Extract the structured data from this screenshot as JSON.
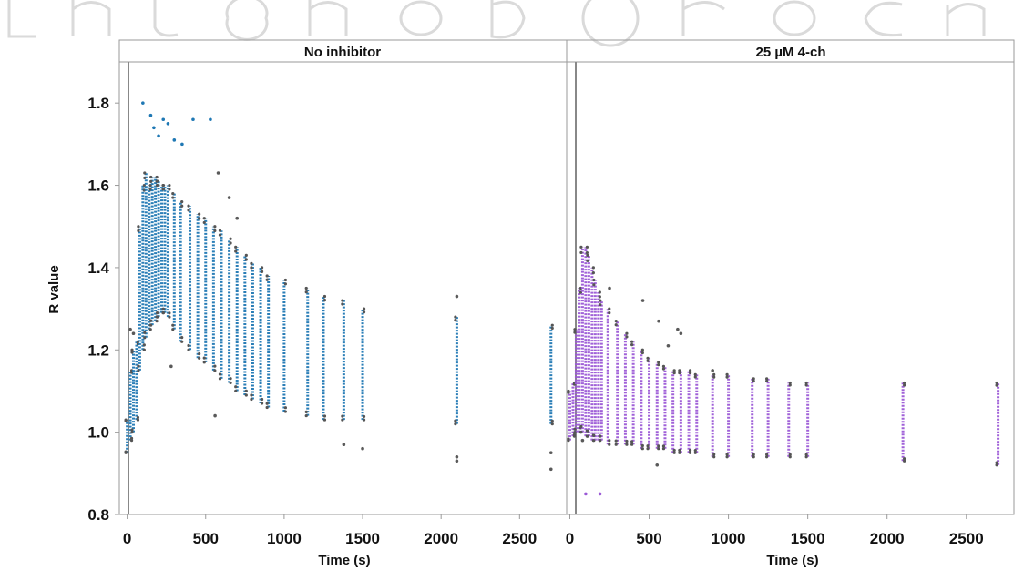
{
  "chart_data": [
    {
      "type": "scatter",
      "title": "No inhibitor",
      "xlabel": "Time (s)",
      "ylabel": "R value",
      "xlim": [
        -50,
        2800
      ],
      "ylim": [
        0.8,
        1.9
      ],
      "xticks": [
        0,
        500,
        1000,
        1500,
        2000,
        2500
      ],
      "yticks": [
        0.8,
        1.0,
        1.2,
        1.4,
        1.6,
        1.8
      ],
      "grid": false,
      "color": "#1f78b4",
      "series": [
        {
          "points": [
            {
              "x": 0,
              "ymin": 0.95,
              "ymax": 1.03
            },
            {
              "x": 20,
              "ymin": 0.98,
              "ymax": 1.15
            },
            {
              "x": 40,
              "ymin": 1.0,
              "ymax": 1.2
            },
            {
              "x": 60,
              "ymin": 1.03,
              "ymax": 1.22
            },
            {
              "x": 80,
              "ymin": 1.15,
              "ymax": 1.5
            },
            {
              "x": 100,
              "ymin": 1.2,
              "ymax": 1.6
            },
            {
              "x": 120,
              "ymin": 1.23,
              "ymax": 1.63
            },
            {
              "x": 140,
              "ymin": 1.25,
              "ymax": 1.6
            },
            {
              "x": 160,
              "ymin": 1.26,
              "ymax": 1.62
            },
            {
              "x": 180,
              "ymin": 1.27,
              "ymax": 1.62
            },
            {
              "x": 200,
              "ymin": 1.28,
              "ymax": 1.61
            },
            {
              "x": 220,
              "ymin": 1.29,
              "ymax": 1.6
            },
            {
              "x": 240,
              "ymin": 1.29,
              "ymax": 1.6
            },
            {
              "x": 260,
              "ymin": 1.28,
              "ymax": 1.6
            },
            {
              "x": 300,
              "ymin": 1.25,
              "ymax": 1.58
            },
            {
              "x": 340,
              "ymin": 1.22,
              "ymax": 1.56
            },
            {
              "x": 400,
              "ymin": 1.2,
              "ymax": 1.55
            },
            {
              "x": 450,
              "ymin": 1.18,
              "ymax": 1.53
            },
            {
              "x": 500,
              "ymin": 1.17,
              "ymax": 1.52
            },
            {
              "x": 550,
              "ymin": 1.15,
              "ymax": 1.5
            },
            {
              "x": 600,
              "ymin": 1.13,
              "ymax": 1.49
            },
            {
              "x": 650,
              "ymin": 1.12,
              "ymax": 1.47
            },
            {
              "x": 700,
              "ymin": 1.1,
              "ymax": 1.45
            },
            {
              "x": 750,
              "ymin": 1.09,
              "ymax": 1.43
            },
            {
              "x": 800,
              "ymin": 1.08,
              "ymax": 1.41
            },
            {
              "x": 850,
              "ymin": 1.07,
              "ymax": 1.4
            },
            {
              "x": 900,
              "ymin": 1.06,
              "ymax": 1.38
            },
            {
              "x": 1000,
              "ymin": 1.05,
              "ymax": 1.37
            },
            {
              "x": 1150,
              "ymin": 1.04,
              "ymax": 1.35
            },
            {
              "x": 1250,
              "ymin": 1.03,
              "ymax": 1.33
            },
            {
              "x": 1380,
              "ymin": 1.03,
              "ymax": 1.32
            },
            {
              "x": 1500,
              "ymin": 1.03,
              "ymax": 1.3
            },
            {
              "x": 2100,
              "ymin": 1.02,
              "ymax": 1.28
            },
            {
              "x": 2700,
              "ymin": 1.02,
              "ymax": 1.26
            }
          ]
        }
      ],
      "outliers": [
        {
          "x": 100,
          "y": 1.8
        },
        {
          "x": 150,
          "y": 1.77
        },
        {
          "x": 170,
          "y": 1.74
        },
        {
          "x": 200,
          "y": 1.72
        },
        {
          "x": 230,
          "y": 1.76
        },
        {
          "x": 260,
          "y": 1.75
        },
        {
          "x": 300,
          "y": 1.71
        },
        {
          "x": 350,
          "y": 1.7
        },
        {
          "x": 420,
          "y": 1.76
        },
        {
          "x": 530,
          "y": 1.76
        },
        {
          "x": 580,
          "y": 1.63
        },
        {
          "x": 650,
          "y": 1.57
        },
        {
          "x": 700,
          "y": 1.52
        },
        {
          "x": 20,
          "y": 1.25
        },
        {
          "x": 40,
          "y": 1.24
        },
        {
          "x": 2100,
          "y": 1.33
        },
        {
          "x": 280,
          "y": 1.16
        },
        {
          "x": 560,
          "y": 1.04
        },
        {
          "x": 1380,
          "y": 0.97
        },
        {
          "x": 2100,
          "y": 0.94
        },
        {
          "x": 2100,
          "y": 0.93
        },
        {
          "x": 2700,
          "y": 0.95
        },
        {
          "x": 2700,
          "y": 0.91
        },
        {
          "x": 1500,
          "y": 0.96
        }
      ]
    },
    {
      "type": "scatter",
      "title": "25 µM 4-ch",
      "xlabel": "Time (s)",
      "ylabel": "",
      "xlim": [
        -20,
        2800
      ],
      "ylim": [
        0.8,
        1.9
      ],
      "xticks": [
        0,
        500,
        1000,
        1500,
        2000,
        2500
      ],
      "yticks": [],
      "grid": false,
      "color": "#9b59d6",
      "series": [
        {
          "points": [
            {
              "x": 0,
              "ymin": 0.98,
              "ymax": 1.1
            },
            {
              "x": 20,
              "ymin": 0.99,
              "ymax": 1.12
            },
            {
              "x": 40,
              "ymin": 1.0,
              "ymax": 1.25
            },
            {
              "x": 60,
              "ymin": 1.0,
              "ymax": 1.35
            },
            {
              "x": 80,
              "ymin": 1.0,
              "ymax": 1.45
            },
            {
              "x": 100,
              "ymin": 0.99,
              "ymax": 1.45
            },
            {
              "x": 120,
              "ymin": 0.99,
              "ymax": 1.43
            },
            {
              "x": 140,
              "ymin": 0.98,
              "ymax": 1.4
            },
            {
              "x": 160,
              "ymin": 0.98,
              "ymax": 1.37
            },
            {
              "x": 180,
              "ymin": 0.98,
              "ymax": 1.34
            },
            {
              "x": 200,
              "ymin": 0.98,
              "ymax": 1.32
            },
            {
              "x": 240,
              "ymin": 0.97,
              "ymax": 1.3
            },
            {
              "x": 300,
              "ymin": 0.97,
              "ymax": 1.27
            },
            {
              "x": 350,
              "ymin": 0.97,
              "ymax": 1.24
            },
            {
              "x": 400,
              "ymin": 0.97,
              "ymax": 1.22
            },
            {
              "x": 450,
              "ymin": 0.96,
              "ymax": 1.2
            },
            {
              "x": 500,
              "ymin": 0.96,
              "ymax": 1.18
            },
            {
              "x": 550,
              "ymin": 0.96,
              "ymax": 1.17
            },
            {
              "x": 600,
              "ymin": 0.96,
              "ymax": 1.16
            },
            {
              "x": 650,
              "ymin": 0.95,
              "ymax": 1.15
            },
            {
              "x": 700,
              "ymin": 0.95,
              "ymax": 1.15
            },
            {
              "x": 750,
              "ymin": 0.95,
              "ymax": 1.15
            },
            {
              "x": 800,
              "ymin": 0.95,
              "ymax": 1.14
            },
            {
              "x": 900,
              "ymin": 0.94,
              "ymax": 1.14
            },
            {
              "x": 1000,
              "ymin": 0.94,
              "ymax": 1.14
            },
            {
              "x": 1150,
              "ymin": 0.94,
              "ymax": 1.13
            },
            {
              "x": 1250,
              "ymin": 0.94,
              "ymax": 1.13
            },
            {
              "x": 1380,
              "ymin": 0.94,
              "ymax": 1.12
            },
            {
              "x": 1500,
              "ymin": 0.94,
              "ymax": 1.12
            },
            {
              "x": 2100,
              "ymin": 0.93,
              "ymax": 1.12
            },
            {
              "x": 2700,
              "ymin": 0.92,
              "ymax": 1.12
            }
          ]
        }
      ],
      "outliers": [
        {
          "x": 100,
          "y": 0.85
        },
        {
          "x": 190,
          "y": 0.85
        },
        {
          "x": 460,
          "y": 1.32
        },
        {
          "x": 560,
          "y": 1.27
        },
        {
          "x": 680,
          "y": 1.25
        },
        {
          "x": 550,
          "y": 0.92
        },
        {
          "x": 700,
          "y": 1.24
        },
        {
          "x": 80,
          "y": 0.98
        },
        {
          "x": 250,
          "y": 1.35
        },
        {
          "x": 620,
          "y": 1.21
        },
        {
          "x": 900,
          "y": 1.15
        }
      ]
    }
  ]
}
